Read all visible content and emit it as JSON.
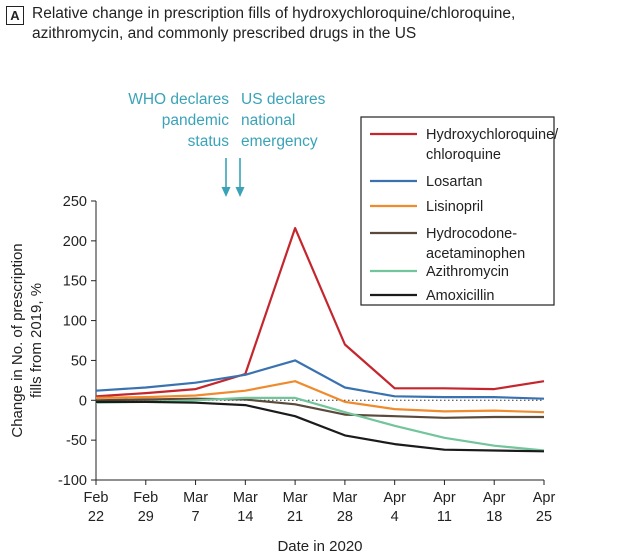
{
  "panel_label": "A",
  "title": [
    "Relative change in prescription fills of hydroxychloroquine/chloroquine,",
    "azithromycin, and commonly prescribed drugs in the US"
  ],
  "chart_data": {
    "type": "line",
    "title": "Relative change in prescription fills of hydroxychloroquine/chloroquine, azithromycin, and commonly prescribed drugs in the US",
    "xlabel": "Date in 2020",
    "ylabel": [
      "Change in No. of prescription",
      "fills from 2019, %"
    ],
    "ylim": [
      -100,
      250
    ],
    "yticks": [
      250,
      200,
      150,
      100,
      50,
      0,
      -50,
      -100
    ],
    "categories": [
      [
        "Feb",
        "22"
      ],
      [
        "Feb",
        "29"
      ],
      [
        "Mar",
        "7"
      ],
      [
        "Mar",
        "14"
      ],
      [
        "Mar",
        "21"
      ],
      [
        "Mar",
        "28"
      ],
      [
        "Apr",
        "4"
      ],
      [
        "Apr",
        "11"
      ],
      [
        "Apr",
        "18"
      ],
      [
        "Apr",
        "25"
      ]
    ],
    "grid": false,
    "reference_line": 0,
    "legend_position": "top-right",
    "series": [
      {
        "name": [
          "Hydroxychloroquine/",
          "chloroquine"
        ],
        "color": "#c4262e",
        "values": [
          5,
          9,
          14,
          33,
          216,
          70,
          15,
          15,
          14,
          24
        ]
      },
      {
        "name": [
          "Losartan"
        ],
        "color": "#3a72b0",
        "values": [
          12,
          16,
          22,
          32,
          50,
          16,
          5,
          4,
          4,
          2
        ]
      },
      {
        "name": [
          "Lisinopril"
        ],
        "color": "#ef8b2c",
        "values": [
          3,
          4,
          6,
          12,
          24,
          -2,
          -11,
          -14,
          -13,
          -15
        ]
      },
      {
        "name": [
          "Hydrocodone-",
          "acetaminophen"
        ],
        "color": "#5a4a3c",
        "values": [
          0,
          1,
          2,
          1,
          -5,
          -18,
          -20,
          -22,
          -21,
          -21
        ]
      },
      {
        "name": [
          "Azithromycin"
        ],
        "color": "#72c59a",
        "values": [
          -3,
          -2,
          0,
          3,
          3,
          -15,
          -32,
          -47,
          -57,
          -63
        ]
      },
      {
        "name": [
          "Amoxicillin"
        ],
        "color": "#1b1b1b",
        "values": [
          -2,
          -2,
          -3,
          -6,
          -20,
          -44,
          -55,
          -62,
          -63,
          -64
        ]
      }
    ],
    "annotations": [
      {
        "text": [
          "WHO declares",
          "pandemic",
          "status"
        ],
        "color": "#3aa3b8",
        "date": "Mar 11"
      },
      {
        "text": [
          "US declares",
          "national",
          "emergency"
        ],
        "color": "#3aa3b8",
        "date": "Mar 13"
      }
    ]
  }
}
